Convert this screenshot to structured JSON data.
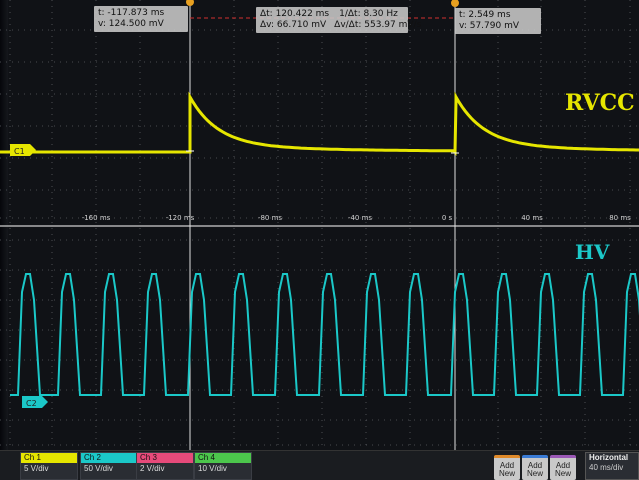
{
  "cursor1": {
    "t": "t: -117.873 ms",
    "v": "v: 124.500 mV"
  },
  "delta": {
    "dt": "Δt: 120.422 ms",
    "inv_dt": "1/Δt: 8.30 Hz",
    "dv": "Δv: 66.710 mV",
    "dv_dt": "Δv/Δt: 553.97 mV/s"
  },
  "cursor2": {
    "t": "t: 2.549 ms",
    "v": "v: 57.790 mV"
  },
  "labels": {
    "rvcc": "RVCC",
    "hv": "HV",
    "c1_marker": "C1",
    "c2_marker": "C2"
  },
  "time_axis": [
    "-160 ms",
    "-120 ms",
    "-80 ms",
    "-40 ms",
    "0 s",
    "40 ms",
    "80 ms"
  ],
  "channels": [
    {
      "name": "Ch 1",
      "scale": "5 V/div",
      "color": "#e6e600"
    },
    {
      "name": "Ch 2",
      "scale": "50 V/div",
      "color": "#1bc8c8"
    },
    {
      "name": "Ch 3",
      "scale": "2 V/div",
      "color": "#e64a7a"
    },
    {
      "name": "Ch 4",
      "scale": "10 V/div",
      "color": "#4cc64c"
    }
  ],
  "add_buttons": [
    {
      "label": "Add New",
      "color": "#e08a2a"
    },
    {
      "label": "Add New",
      "color": "#3a7bd5"
    },
    {
      "label": "Add New",
      "color": "#9b59b6"
    }
  ],
  "horizontal": {
    "title": "Horizontal",
    "scale": "40 ms/div"
  },
  "colors": {
    "ch1": "#e6e600",
    "ch2": "#1bc8c8",
    "cursor": "#e0e0e0",
    "delta_line": "#d03030"
  }
}
